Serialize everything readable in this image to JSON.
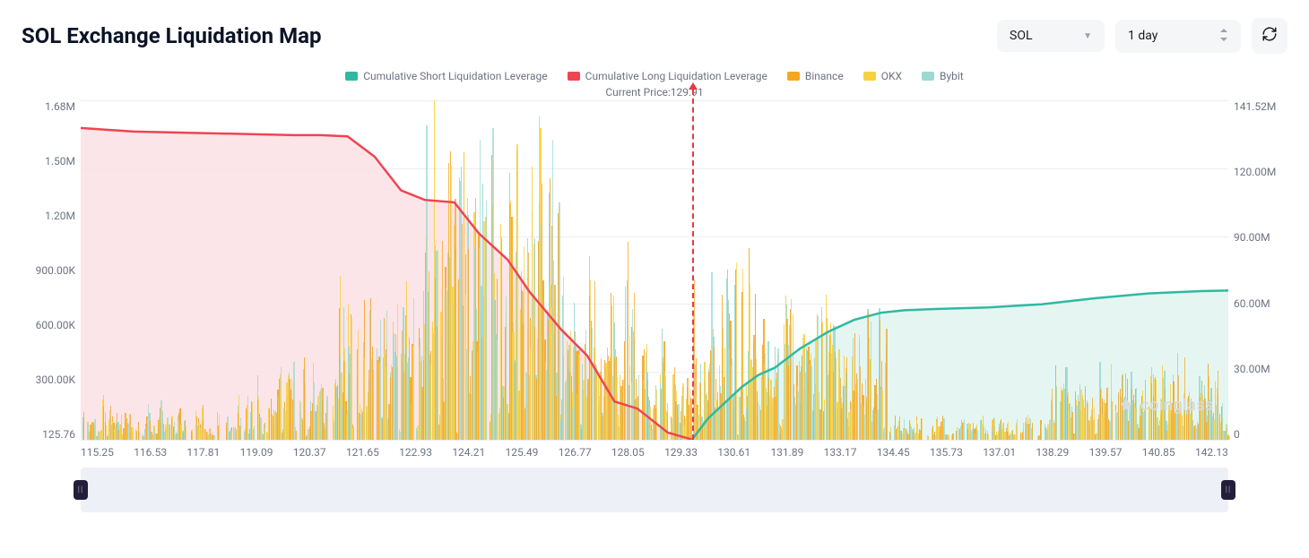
{
  "header": {
    "title": "SOL Exchange Liquidation Map",
    "symbol_select": {
      "label": "SOL"
    },
    "range_select": {
      "label": "1 day"
    },
    "refresh_icon": "refresh-icon"
  },
  "legend": {
    "items": [
      {
        "label": "Cumulative Short Liquidation Leverage",
        "color": "#2fb9a0"
      },
      {
        "label": "Cumulative Long Liquidation Leverage",
        "color": "#ef4452"
      },
      {
        "label": "Binance",
        "color": "#f5a623"
      },
      {
        "label": "OKX",
        "color": "#f7d23e"
      },
      {
        "label": "Bybit",
        "color": "#9bd9d1"
      }
    ]
  },
  "chart": {
    "current_price_label": "Current Price:",
    "current_price_value": "129.91",
    "watermark": "coinglass",
    "x_min": 115.25,
    "x_max": 142.77,
    "price_line_x": 129.91,
    "left_axis": {
      "ticks": [
        "1.68M",
        "1.50M",
        "1.20M",
        "900.00K",
        "600.00K",
        "300.00K",
        "125.76"
      ],
      "min": 125.76,
      "max": 1680000,
      "unit": "K"
    },
    "right_axis": {
      "ticks": [
        "141.52M",
        "120.00M",
        "90.00M",
        "60.00M",
        "30.00M",
        "0"
      ],
      "min": 0,
      "max": 141520000
    },
    "x_ticks": [
      "115.25",
      "116.53",
      "117.81",
      "119.09",
      "120.37",
      "121.65",
      "122.93",
      "124.21",
      "125.49",
      "126.77",
      "128.05",
      "129.33",
      "130.61",
      "131.89",
      "133.17",
      "134.45",
      "135.73",
      "137.01",
      "138.29",
      "139.57",
      "140.85",
      "142.13"
    ],
    "long_line": {
      "color": "#ef4452",
      "fill": "#fbe1e4",
      "fill_opacity": 0.85,
      "points": [
        [
          115.25,
          130.0
        ],
        [
          116.53,
          128.5
        ],
        [
          117.81,
          128.0
        ],
        [
          119.09,
          127.5
        ],
        [
          120.37,
          127.0
        ],
        [
          121.0,
          127.0
        ],
        [
          121.65,
          126.5
        ],
        [
          122.3,
          118.0
        ],
        [
          122.93,
          104.0
        ],
        [
          123.5,
          100.0
        ],
        [
          124.21,
          99.0
        ],
        [
          124.8,
          86.0
        ],
        [
          125.49,
          75.0
        ],
        [
          126.0,
          62.0
        ],
        [
          126.77,
          46.0
        ],
        [
          127.4,
          35.0
        ],
        [
          128.05,
          16.0
        ],
        [
          128.6,
          13.0
        ],
        [
          129.33,
          3.0
        ],
        [
          129.91,
          0.1
        ]
      ]
    },
    "short_line": {
      "color": "#2fb9a0",
      "fill": "#e1f4f0",
      "fill_opacity": 0.85,
      "points": [
        [
          129.91,
          0.1
        ],
        [
          130.3,
          9.0
        ],
        [
          130.61,
          14.0
        ],
        [
          131.1,
          22.0
        ],
        [
          131.5,
          27.0
        ],
        [
          131.89,
          30.0
        ],
        [
          132.5,
          38.0
        ],
        [
          133.17,
          45.0
        ],
        [
          133.8,
          50.0
        ],
        [
          134.45,
          53.0
        ],
        [
          135.0,
          54.0
        ],
        [
          135.73,
          54.5
        ],
        [
          137.01,
          55.2
        ],
        [
          138.29,
          56.5
        ],
        [
          139.57,
          59.0
        ],
        [
          140.85,
          61.0
        ],
        [
          141.5,
          61.5
        ],
        [
          142.13,
          62.0
        ],
        [
          142.77,
          62.2
        ]
      ]
    },
    "bars_left_y_max": 1680,
    "bars_right_y_max": 141.52,
    "colors": {
      "binance": "#f5a623",
      "okx": "#f7d23e",
      "bybit": "#9bd9d1"
    },
    "background_color": "#ffffff",
    "grid_color": "#eceef1",
    "label_fontsize": 12,
    "title_fontsize": 24
  }
}
